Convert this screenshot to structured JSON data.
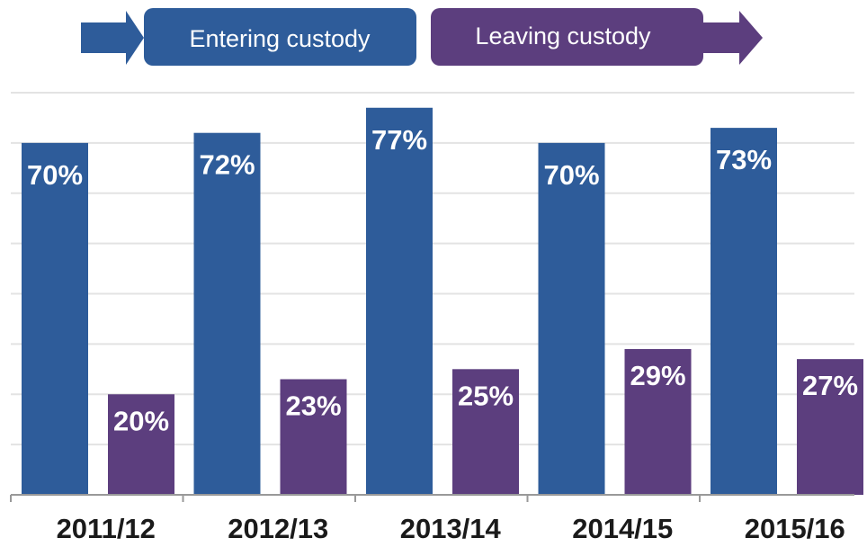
{
  "chart_data": {
    "type": "bar",
    "title": "",
    "xlabel": "",
    "ylabel": "",
    "categories": [
      "2011/12",
      "2012/13",
      "2013/14",
      "2014/15",
      "2015/16"
    ],
    "series": [
      {
        "name": "Entering custody",
        "values": [
          70,
          72,
          77,
          70,
          73
        ],
        "labels": [
          "70%",
          "72%",
          "77%",
          "70%",
          "73%"
        ],
        "color": "#2e5c9a"
      },
      {
        "name": "Leaving custody",
        "values": [
          20,
          23,
          25,
          29,
          27
        ],
        "labels": [
          "20%",
          "23%",
          "25%",
          "29%",
          "27%"
        ],
        "color": "#5c3e7e"
      }
    ],
    "ylim": [
      0,
      80
    ],
    "grid": true,
    "legend": "top-left"
  },
  "colors": {
    "entering": "#2e5c9a",
    "leaving": "#5c3e7e",
    "grid": "#e3e3e3",
    "axis": "#999999"
  }
}
